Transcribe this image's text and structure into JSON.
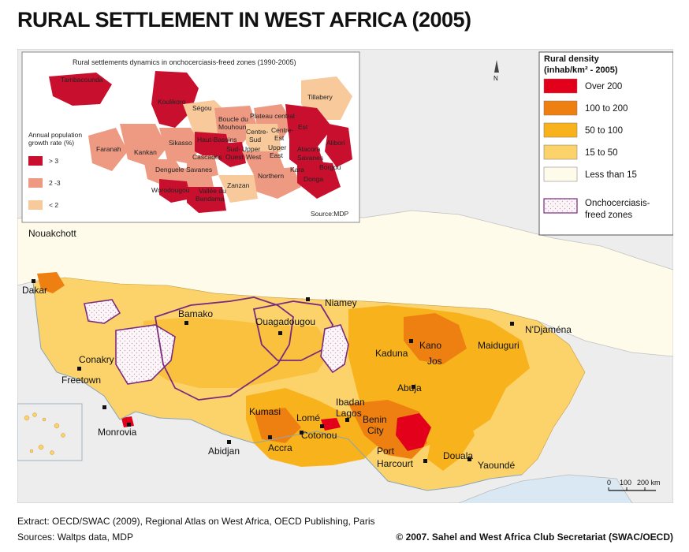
{
  "title": "RURAL SETTLEMENT IN WEST AFRICA (2005)",
  "colors": {
    "over_200": "#e3001b",
    "100_200": "#ee8012",
    "50_100": "#f7b21c",
    "15_50": "#fcd36b",
    "less_15": "#fffbea",
    "sea": "#d9e8f2",
    "outside": "#ededed",
    "oncho_border": "#7a2a7e",
    "inset_gt3": "#c8102e",
    "inset_2_3": "#ee9a82",
    "inset_lt2": "#f7c99b"
  },
  "legend": {
    "title": "Rural density",
    "subtitle": "(inhab/km² - 2005)",
    "items": [
      {
        "label": "Over 200",
        "color": "#e3001b"
      },
      {
        "label": "100 to 200",
        "color": "#ee8012"
      },
      {
        "label": "50 to 100",
        "color": "#f7b21c"
      },
      {
        "label": "15 to 50",
        "color": "#fcd36b"
      },
      {
        "label": "Less than 15",
        "color": "#fffbea"
      }
    ],
    "oncho_line1": "Onchocerciasis-",
    "oncho_line2": "freed zones"
  },
  "north_arrow": "N",
  "scale": {
    "t0": "0",
    "t1": "100",
    "t2": "200 km"
  },
  "cities": {
    "nouakchott": "Nouakchott",
    "dakar": "Dakar",
    "bamako": "Bamako",
    "niamey": "Niamey",
    "ouagadougou": "Ouagadougou",
    "ndjamena": "N'Djaména",
    "conakry": "Conakry",
    "freetown": "Freetown",
    "monrovia": "Monrovia",
    "abidjan": "Abidjan",
    "kumasi": "Kumasi",
    "accra": "Accra",
    "lome": "Lomé",
    "cotonou": "Cotonou",
    "ibadan": "Ibadan",
    "lagos": "Lagos",
    "benin1": "Benin",
    "benin2": "City",
    "port": "Port",
    "harcourt": "Harcourt",
    "douala": "Douala",
    "yaounde": "Yaoundé",
    "kaduna": "Kaduna",
    "kano": "Kano",
    "jos": "Jos",
    "abuja": "Abuja",
    "maiduguri": "Maiduguri"
  },
  "inset": {
    "title": "Rural settlements dynamics in onchocerciasis-freed zones (1990-2005)",
    "legend_title1": "Annual population",
    "legend_title2": "growth rate (%)",
    "legend_items": [
      {
        "label": "> 3",
        "color": "#c8102e"
      },
      {
        "label": "2 -3",
        "color": "#ee9a82"
      },
      {
        "label": "< 2",
        "color": "#f7c99b"
      }
    ],
    "source": "Source:MDP",
    "regions": {
      "tambacounda": "Tambacounda",
      "koulikoro": "Koulikoro",
      "segou": "Ségou",
      "tillabery": "Tillabery",
      "boucle1": "Boucle du",
      "boucle2": "Mouhoun",
      "plateau": "Plateau central",
      "centre_sud1": "Centre-",
      "centre_sud2": "Sud",
      "centre_est1": "Centre-",
      "centre_est2": "Est",
      "est": "Est",
      "faranah": "Faranah",
      "kankan": "Kankan",
      "sikasso": "Sikasso",
      "haut_bassins": "Haut-Bassins",
      "sud_ouest1": "Sud-",
      "sud_ouest2": "Ouest",
      "upper_west1": "Upper",
      "upper_west2": "West",
      "upper_east1": "Upper",
      "upper_east2": "East",
      "atacora1": "Atacora",
      "atacora2": "Savanes",
      "alibori": "Alibori",
      "cascades": "Cascades",
      "denguele": "Denguele",
      "savanes": "Savanes",
      "northern": "Northern",
      "kara": "Kara",
      "borgou": "Borgou",
      "donga": "Donga",
      "worodougou": "Worodougou",
      "vallee1": "Vallée du",
      "vallee2": "Bandama",
      "zanzan": "Zanzan"
    }
  },
  "footer": {
    "extract": "Extract: OECD/SWAC (2009), Regional Atlas on West Africa, OECD Publishing, Paris",
    "sources": "Sources: Waltps data, MDP",
    "copyright": "© 2007. Sahel and West Africa Club Secretariat (SWAC/OECD)"
  }
}
